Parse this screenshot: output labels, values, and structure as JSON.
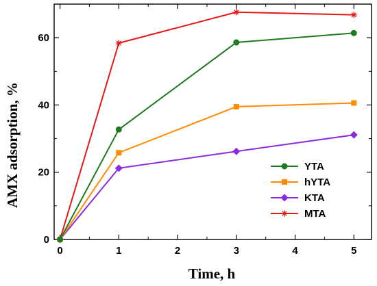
{
  "chart_data": {
    "type": "line",
    "xlabel": "Time, h",
    "ylabel": "AMX adsorption, %",
    "xlim": [
      -0.1,
      5.3
    ],
    "ylim": [
      0,
      70
    ],
    "xticks": [
      "0",
      "1",
      "2",
      "3",
      "4",
      "5"
    ],
    "yticks": [
      "0",
      "20",
      "40",
      "60"
    ],
    "grid": false,
    "legend_position": "bottom-right",
    "x": [
      0,
      1,
      3,
      5
    ],
    "series": [
      {
        "name": "YTA",
        "color": "#1f7a1f",
        "marker": "circle",
        "values": [
          0,
          32.7,
          58.6,
          61.4
        ]
      },
      {
        "name": "hYTA",
        "color": "#ff8c00",
        "marker": "square",
        "values": [
          0,
          25.8,
          39.5,
          40.6
        ]
      },
      {
        "name": "KTA",
        "color": "#8a2be2",
        "marker": "diamond",
        "values": [
          0,
          21.2,
          26.2,
          31.1
        ]
      },
      {
        "name": "MTA",
        "color": "#e81717",
        "marker": "star",
        "values": [
          0,
          58.4,
          67.6,
          66.8
        ]
      }
    ]
  }
}
